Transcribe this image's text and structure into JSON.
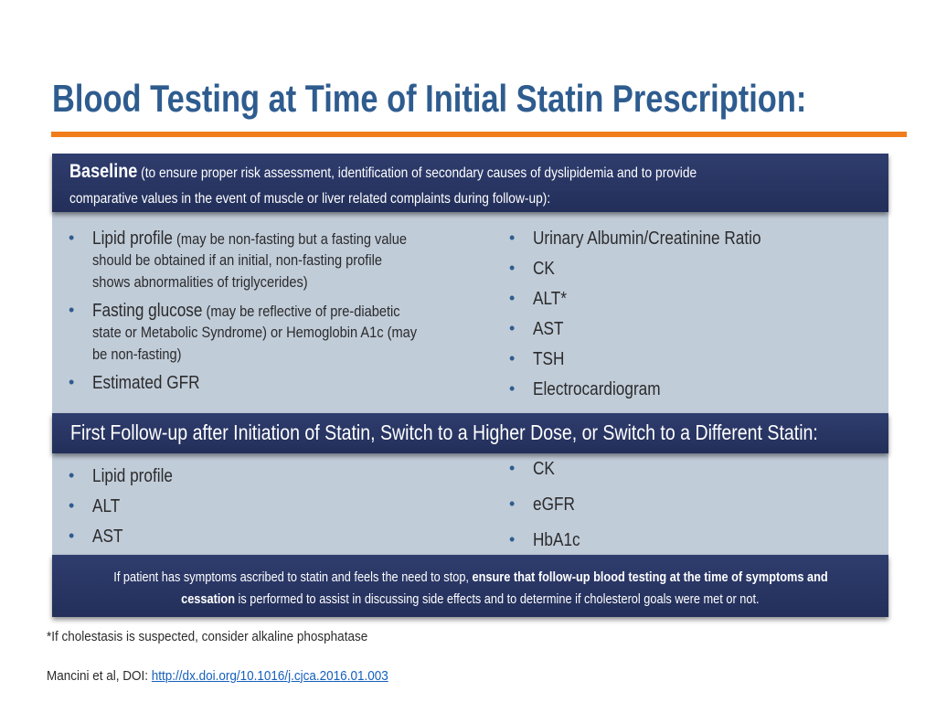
{
  "title": "Blood Testing at Time of Initial Statin Prescription:",
  "baseline": {
    "heading": "Baseline",
    "desc_line1": " (to ensure proper risk assessment, identification of secondary causes of dyslipidemia and to provide",
    "desc_line2": "comparative values in the event of muscle or liver related complaints during follow-up):",
    "left_items": [
      {
        "main": "Lipid profile",
        "sub": " (may be non-fasting but a fasting value",
        "sub2": "should be obtained if an initial, non-fasting profile",
        "sub3": "shows abnormalities of triglycerides)"
      },
      {
        "main": "Fasting glucose",
        "sub": " (may be reflective of pre-diabetic",
        "sub2": "state or Metabolic Syndrome) or Hemoglobin A1c (may",
        "sub3": "be non-fasting)"
      },
      {
        "main": "Estimated GFR"
      }
    ],
    "right_items": [
      "Urinary Albumin/Creatinine Ratio",
      "CK",
      "ALT*",
      "AST",
      "TSH",
      "Electrocardiogram"
    ]
  },
  "followup": {
    "heading": "First Follow-up after Initiation of Statin, Switch to a Higher Dose, or Switch to a Different Statin:",
    "left_items": [
      "Lipid profile",
      "ALT",
      "AST"
    ],
    "right_items": [
      "CK",
      "eGFR",
      "HbA1c"
    ]
  },
  "note": {
    "part1": "If patient has symptoms ascribed to statin and feels the need to stop, ",
    "bold1": "ensure that follow-up blood testing at the time of symptoms and",
    "bold2": "cessation",
    "part2": " is performed to assist in discussing side effects and to determine if cholesterol goals were met or not."
  },
  "footnote": "*If cholestasis is suspected, consider alkaline phosphatase",
  "citation": {
    "prefix": "Mancini et al, DOI: ",
    "link": "http://dx.doi.org/10.1016/j.cjca.2016.01.003"
  },
  "bullet_glyph": "•",
  "colors": {
    "title": "#2e5c8f",
    "rule": "#f07d1a",
    "banner": "#2a3664",
    "panel": "#c1ccd9",
    "link": "#1560bd"
  }
}
